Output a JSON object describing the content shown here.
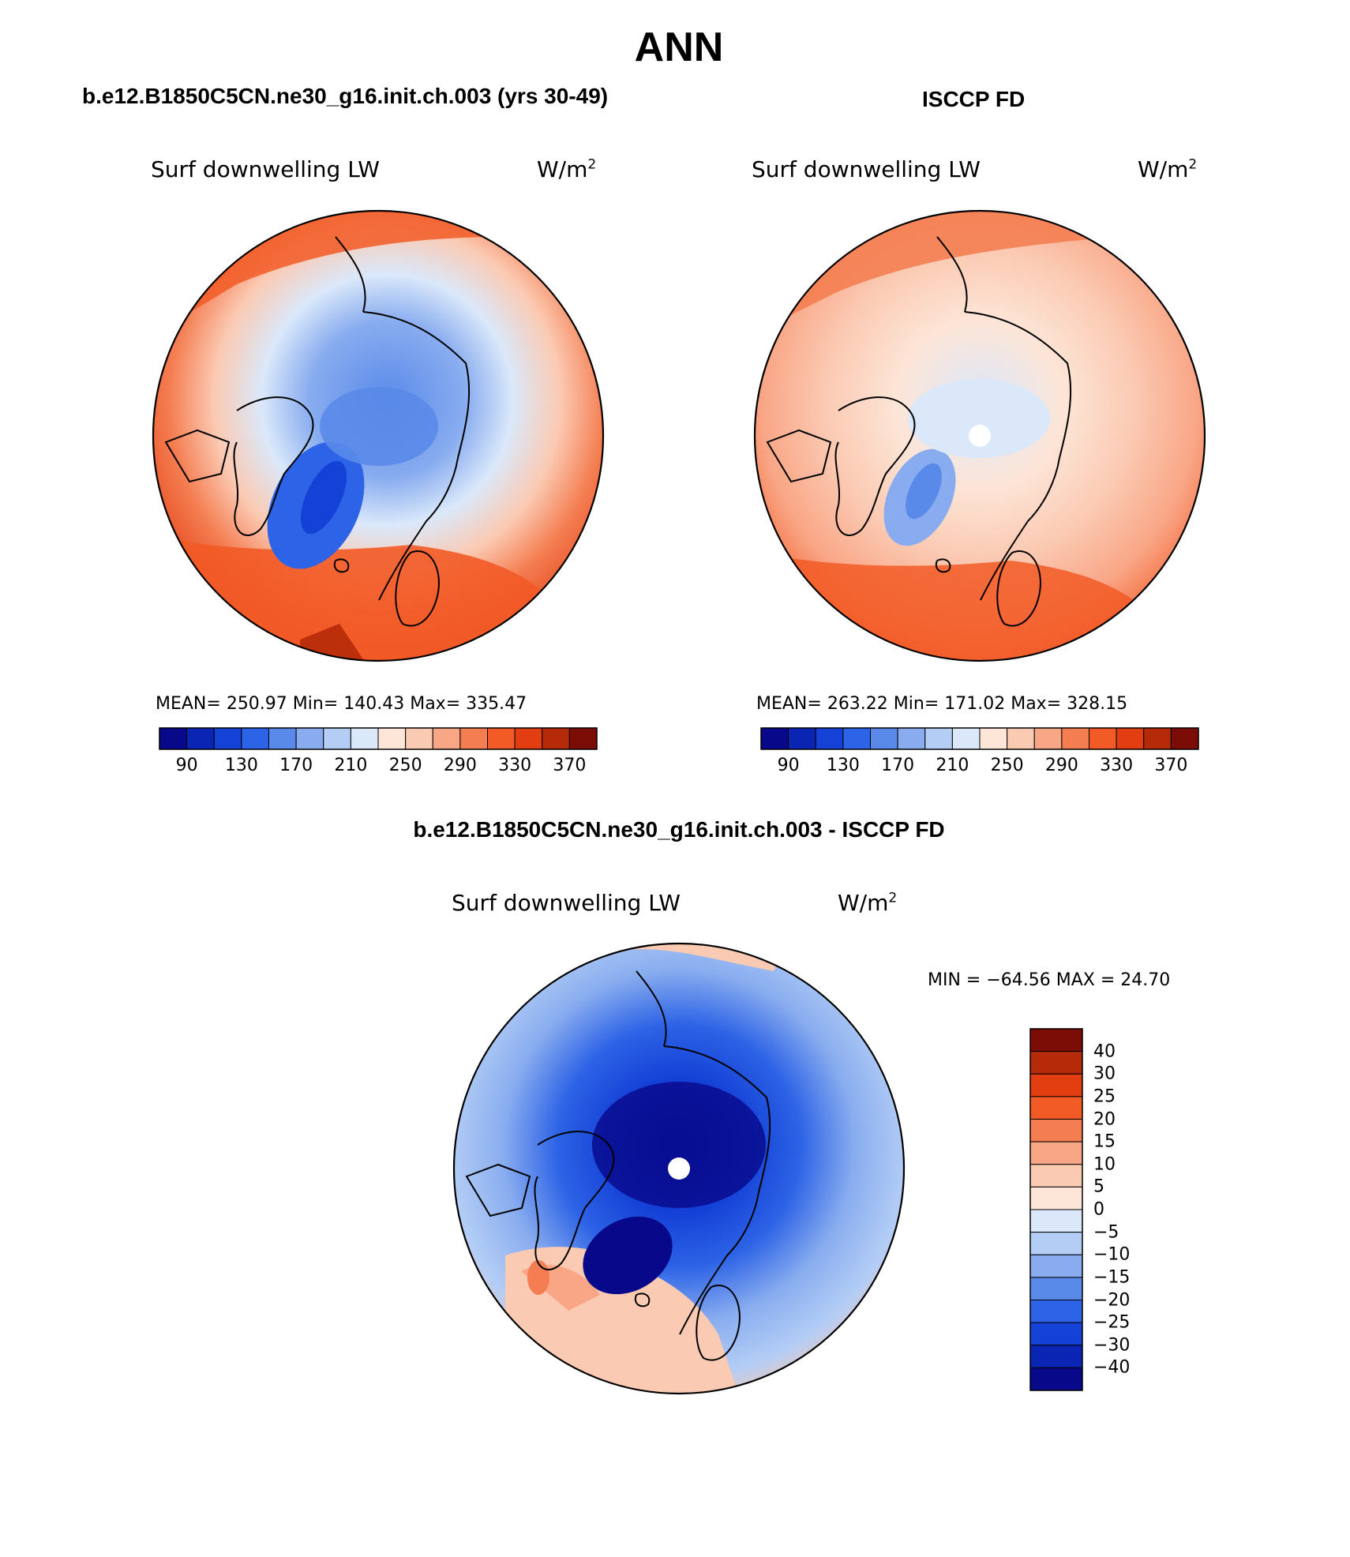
{
  "figure": {
    "title": "ANN",
    "left_title": "b.e12.B1850C5CN.ne30_g16.init.ch.003 (yrs 30-49)",
    "right_title": "ISCCP FD",
    "diff_title": "b.e12.B1850C5CN.ne30_g16.init.ch.003 - ISCCP FD"
  },
  "panels": {
    "model": {
      "variable": "Surf downwelling LW",
      "units": "W/m",
      "units_exp": "2",
      "stats": "MEAN= 250.97   Min= 140.43   Max= 335.47"
    },
    "obs": {
      "variable": "Surf downwelling LW",
      "units": "W/m",
      "units_exp": "2",
      "stats": "MEAN= 263.22   Min= 171.02   Max= 328.15"
    },
    "diff": {
      "variable": "Surf downwelling LW",
      "units": "W/m",
      "units_exp": "2",
      "stats": "MIN = −64.56 MAX =  24.70"
    }
  },
  "colorbar_abs": {
    "tick_labels": [
      "90",
      "130",
      "170",
      "210",
      "250",
      "290",
      "330",
      "370"
    ],
    "colors": [
      "#08088a",
      "#0a24b4",
      "#1441d6",
      "#2d63e6",
      "#5a8ae9",
      "#88acef",
      "#b3cdf5",
      "#dae8fa",
      "#fde5d7",
      "#fbcab3",
      "#f9a686",
      "#f47e52",
      "#f25a26",
      "#e33d12",
      "#b52a08",
      "#7c0d06"
    ]
  },
  "colorbar_diff": {
    "tick_labels": [
      "40",
      "30",
      "25",
      "20",
      "15",
      "10",
      "5",
      "0",
      "−5",
      "−10",
      "−15",
      "−20",
      "−25",
      "−30",
      "−40"
    ],
    "colors": [
      "#7c0d06",
      "#b52a08",
      "#e33d12",
      "#f25a26",
      "#f47e52",
      "#f9a686",
      "#fbcab3",
      "#fde5d7",
      "#dae8fa",
      "#b3cdf5",
      "#88acef",
      "#5a8ae9",
      "#2d63e6",
      "#1441d6",
      "#0a24b4",
      "#08088a"
    ]
  }
}
